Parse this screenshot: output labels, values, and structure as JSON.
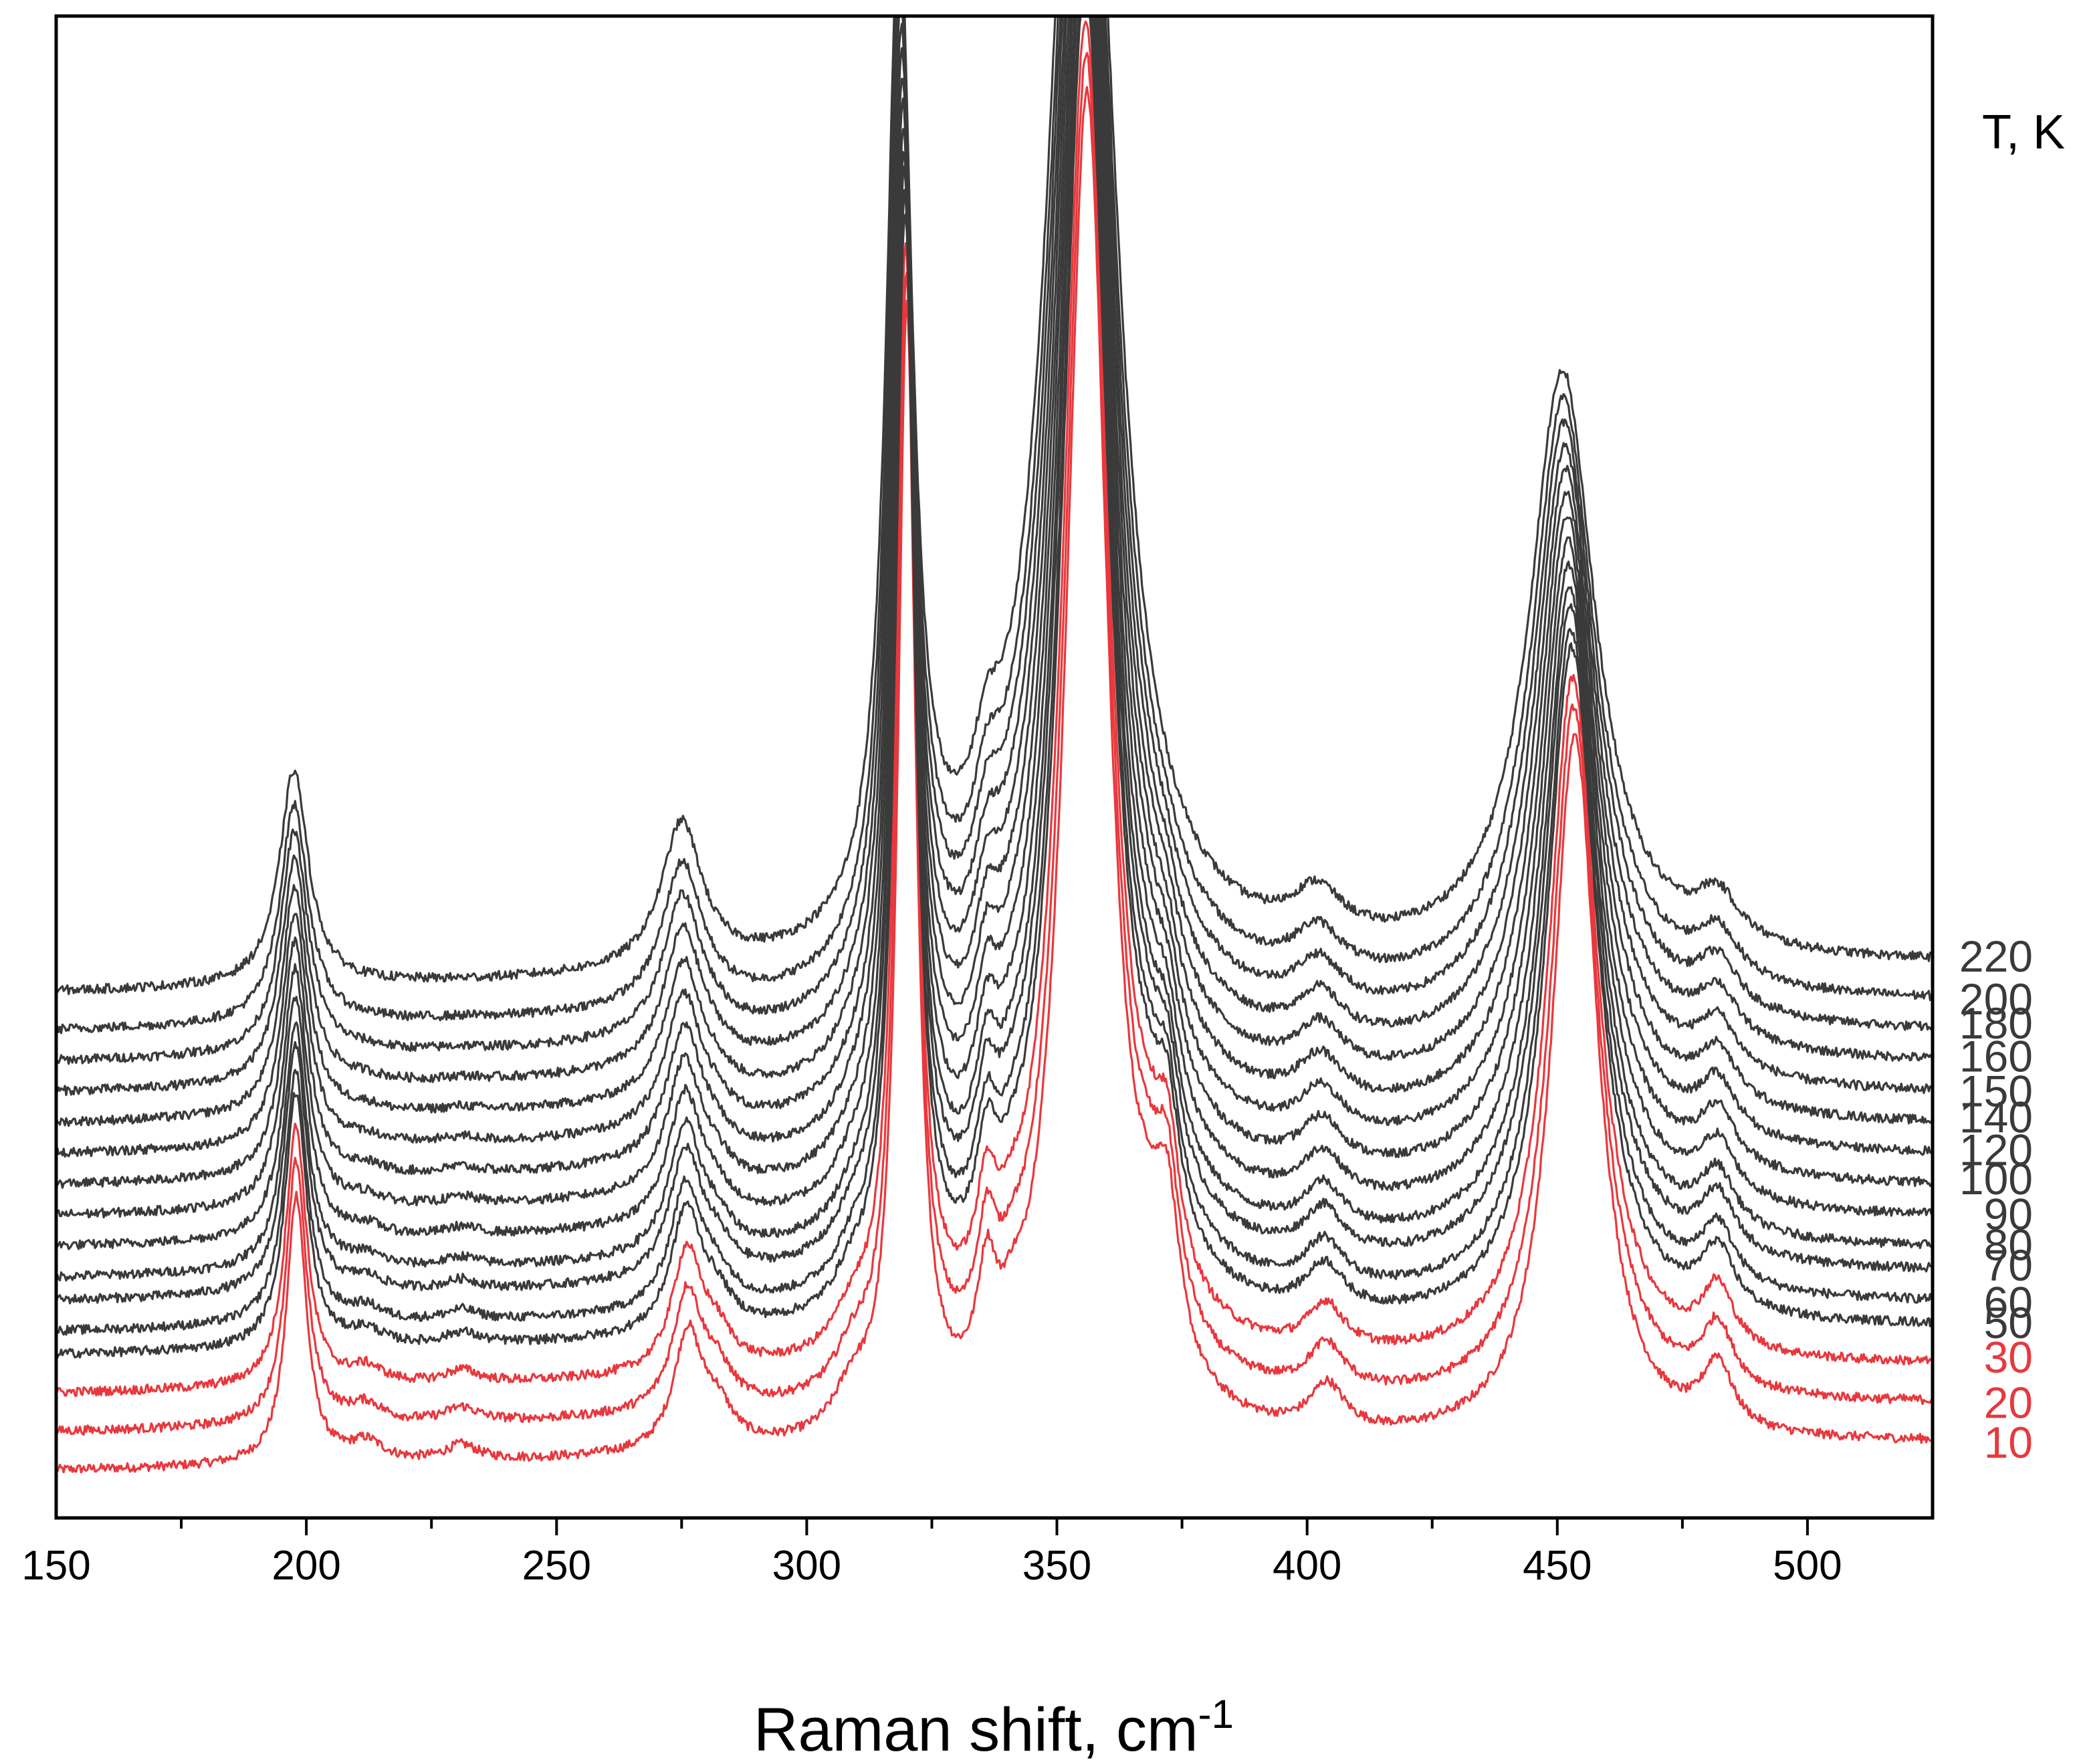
{
  "chart_data": {
    "type": "line",
    "title": "",
    "xlabel": "Raman shift, cm",
    "xlabel_superscript": "-1",
    "ylabel": "",
    "xlim": [
      150,
      525
    ],
    "xticks": [
      150,
      200,
      250,
      300,
      350,
      400,
      450,
      500
    ],
    "grid": false,
    "legend_title": "T, K",
    "legend_position": "right",
    "colors": {
      "low_temperature": "#e8383d",
      "high_temperature": "#3a3a3a"
    },
    "series": [
      {
        "name": "220",
        "offset": 0.62,
        "color": "#3a3a3a"
      },
      {
        "name": "200",
        "offset": 0.57,
        "color": "#3a3a3a"
      },
      {
        "name": "180",
        "offset": 0.53,
        "color": "#3a3a3a"
      },
      {
        "name": "160",
        "offset": 0.49,
        "color": "#3a3a3a"
      },
      {
        "name": "150",
        "offset": 0.45,
        "color": "#3a3a3a"
      },
      {
        "name": "140",
        "offset": 0.41,
        "color": "#3a3a3a"
      },
      {
        "name": "120",
        "offset": 0.37,
        "color": "#3a3a3a"
      },
      {
        "name": "100",
        "offset": 0.33,
        "color": "#3a3a3a"
      },
      {
        "name": "90",
        "offset": 0.29,
        "color": "#3a3a3a"
      },
      {
        "name": "80",
        "offset": 0.25,
        "color": "#3a3a3a"
      },
      {
        "name": "70",
        "offset": 0.22,
        "color": "#3a3a3a"
      },
      {
        "name": "60",
        "offset": 0.18,
        "color": "#3a3a3a"
      },
      {
        "name": "50",
        "offset": 0.15,
        "color": "#3a3a3a"
      },
      {
        "name": "30",
        "offset": 0.1,
        "color": "#e8383d"
      },
      {
        "name": "20",
        "offset": 0.05,
        "color": "#e8383d"
      },
      {
        "name": "10",
        "offset": 0.0,
        "color": "#e8383d"
      }
    ],
    "peaks_cm1": [
      198,
      212,
      231,
      276,
      282,
      320,
      336,
      341,
      356,
      372,
      403,
      453,
      482
    ]
  }
}
